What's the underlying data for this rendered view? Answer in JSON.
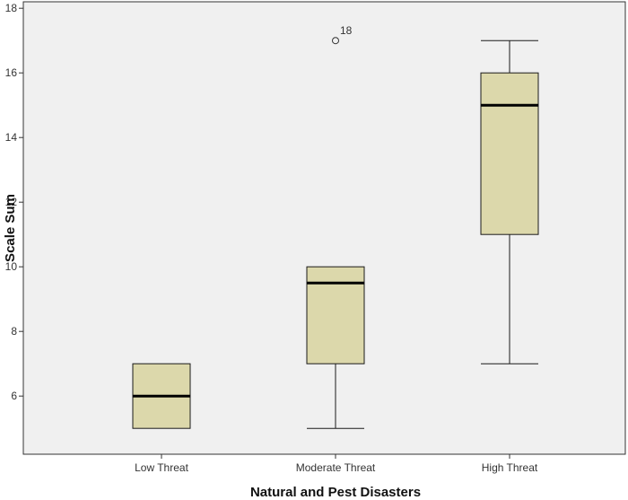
{
  "chart_data": {
    "type": "boxplot",
    "xlabel": "Natural and Pest Disasters",
    "ylabel": "Scale Sum",
    "ylim": [
      4.2,
      18.2
    ],
    "yticks": [
      6,
      8,
      10,
      12,
      14,
      16,
      18
    ],
    "grid": false,
    "legend": "none",
    "categories": [
      "Low Threat",
      "Moderate Threat",
      "High Threat"
    ],
    "boxes": [
      {
        "category": "Low Threat",
        "min": 5,
        "q1": 5,
        "median": 6,
        "q3": 7,
        "max": 7,
        "outliers": []
      },
      {
        "category": "Moderate Threat",
        "min": 5,
        "q1": 7,
        "median": 9.5,
        "q3": 10,
        "max": 10,
        "outliers": [
          {
            "value": 17,
            "label": "18"
          }
        ]
      },
      {
        "category": "High Threat",
        "min": 7,
        "q1": 11,
        "median": 15,
        "q3": 16,
        "max": 17,
        "outliers": []
      }
    ],
    "colors": {
      "box_fill": "#dcd8ab",
      "stroke": "#1a1a1a",
      "median": "#000000",
      "background": "#f0f0f0"
    }
  }
}
